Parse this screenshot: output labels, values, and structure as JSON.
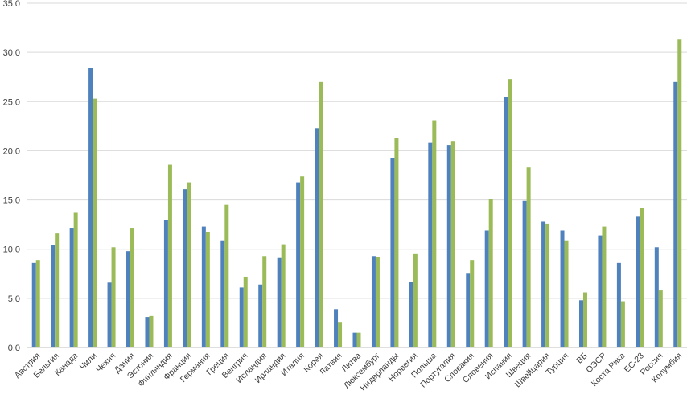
{
  "chart_data": {
    "type": "bar",
    "categories": [
      "Австрия",
      "Бельгия",
      "Канада",
      "Чили",
      "Чехия",
      "Дания",
      "Эстония",
      "Финляндия",
      "Франция",
      "Германия",
      "Греция",
      "Венгрия",
      "Исландия",
      "Ирландия",
      "Италия",
      "Корея",
      "Латвия",
      "Литва",
      "Люксембург",
      "Нидерланды",
      "Норвегия",
      "Польша",
      "Португалия",
      "Словакия",
      "Словения",
      "Испания",
      "Швеция",
      "Швейцария",
      "Турция",
      "ВБ",
      "ОЭСР",
      "Коста Рика",
      "ЕС-28",
      "Россия",
      "Колумбия"
    ],
    "series": [
      {
        "color": "#4f81bd",
        "values": [
          8.6,
          10.4,
          12.1,
          28.4,
          6.6,
          9.8,
          3.1,
          13.0,
          16.1,
          12.3,
          10.9,
          6.1,
          6.4,
          9.1,
          16.8,
          22.3,
          3.9,
          1.5,
          9.3,
          19.3,
          6.7,
          20.8,
          20.6,
          7.5,
          11.9,
          25.5,
          14.9,
          12.8,
          11.9,
          4.8,
          11.4,
          8.6,
          13.3,
          10.2,
          27.0
        ]
      },
      {
        "color": "#9bbb59",
        "values": [
          8.9,
          11.6,
          13.7,
          25.3,
          10.2,
          12.1,
          3.2,
          18.6,
          16.8,
          11.7,
          14.5,
          7.2,
          9.3,
          10.5,
          17.4,
          27.0,
          2.6,
          1.5,
          9.2,
          21.3,
          9.5,
          23.1,
          21.0,
          8.9,
          15.1,
          27.3,
          18.3,
          12.6,
          10.9,
          5.6,
          12.3,
          4.7,
          14.2,
          5.8,
          31.3
        ]
      }
    ],
    "yticks": [
      "0,0",
      "5,0",
      "10,0",
      "15,0",
      "20,0",
      "25,0",
      "30,0",
      "35,0"
    ],
    "ylim": [
      0,
      35
    ],
    "grid": true,
    "title": "",
    "xlabel": "",
    "ylabel": ""
  }
}
